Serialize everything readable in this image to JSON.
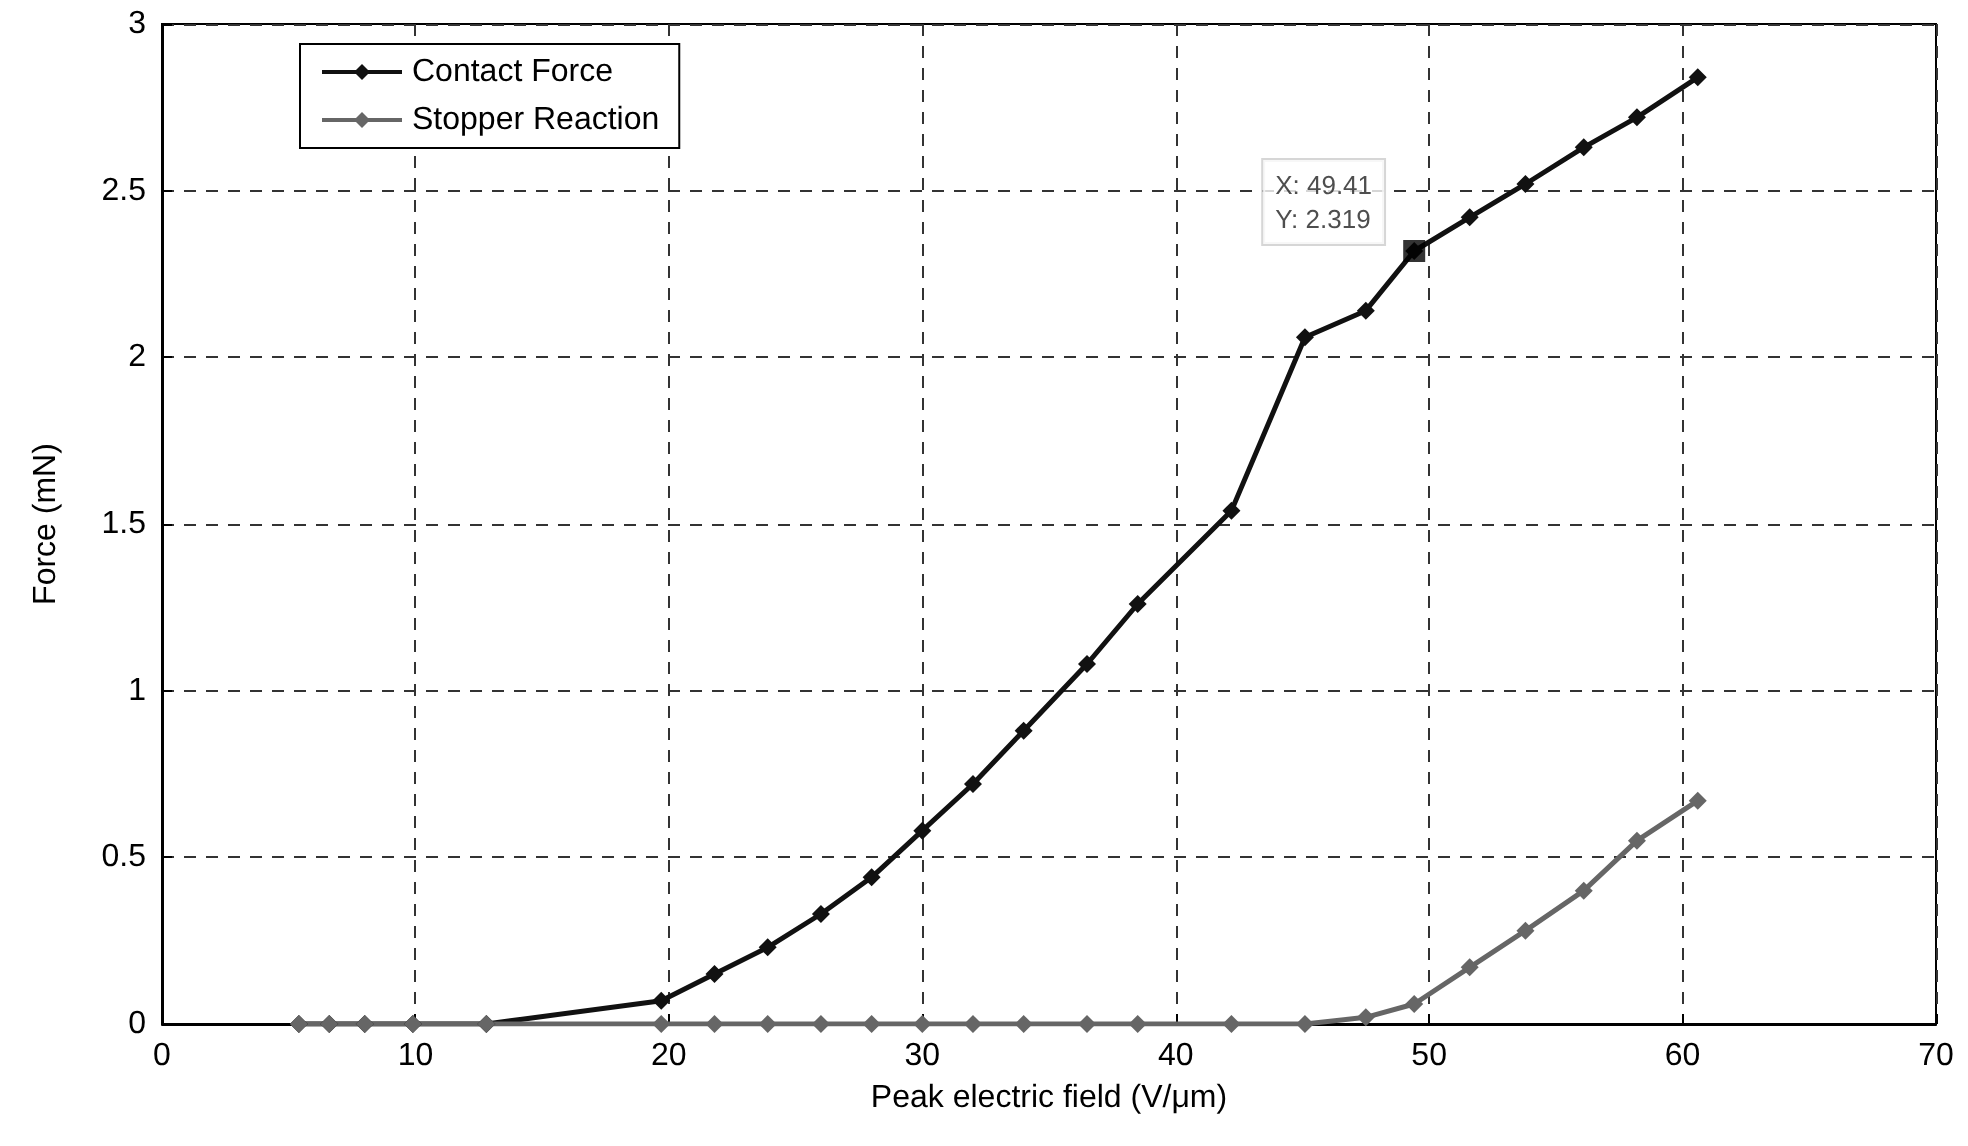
{
  "chart_data": {
    "type": "line",
    "xlabel": "Peak electric field (V/μm)",
    "ylabel": "Force (mN)",
    "x": [
      5.4,
      6.6,
      8.0,
      9.9,
      12.8,
      19.7,
      21.8,
      23.9,
      26.0,
      28.0,
      30.0,
      32.0,
      34.0,
      36.5,
      38.5,
      42.2,
      45.1,
      47.5,
      49.41,
      51.6,
      53.8,
      56.1,
      58.2,
      60.6
    ],
    "series": [
      {
        "name": "Contact Force",
        "color": "#111111",
        "values": [
          0,
          0,
          0,
          0,
          0,
          0.07,
          0.15,
          0.23,
          0.33,
          0.44,
          0.58,
          0.72,
          0.88,
          1.08,
          1.26,
          1.54,
          2.06,
          2.14,
          2.319,
          2.42,
          2.52,
          2.63,
          2.72,
          2.84
        ]
      },
      {
        "name": "Stopper Reaction",
        "color": "#666666",
        "values": [
          0,
          0,
          0,
          0,
          0,
          0,
          0,
          0,
          0,
          0,
          0,
          0,
          0,
          0,
          0,
          0,
          0,
          0.02,
          0.06,
          0.17,
          0.28,
          0.4,
          0.55,
          0.67
        ]
      }
    ],
    "xlim": [
      0,
      70
    ],
    "xticks": [
      0,
      10,
      20,
      30,
      40,
      50,
      60,
      70
    ],
    "ylim": [
      0,
      3
    ],
    "yticks": [
      0,
      0.5,
      1,
      1.5,
      2,
      2.5,
      3
    ],
    "annotations": [
      {
        "text": "X: 49.41\nY: 2.319",
        "x": 49.41,
        "y": 2.319
      }
    ],
    "grid": true,
    "legend": "top left",
    "marker": "diamond",
    "line_style": "solid"
  }
}
